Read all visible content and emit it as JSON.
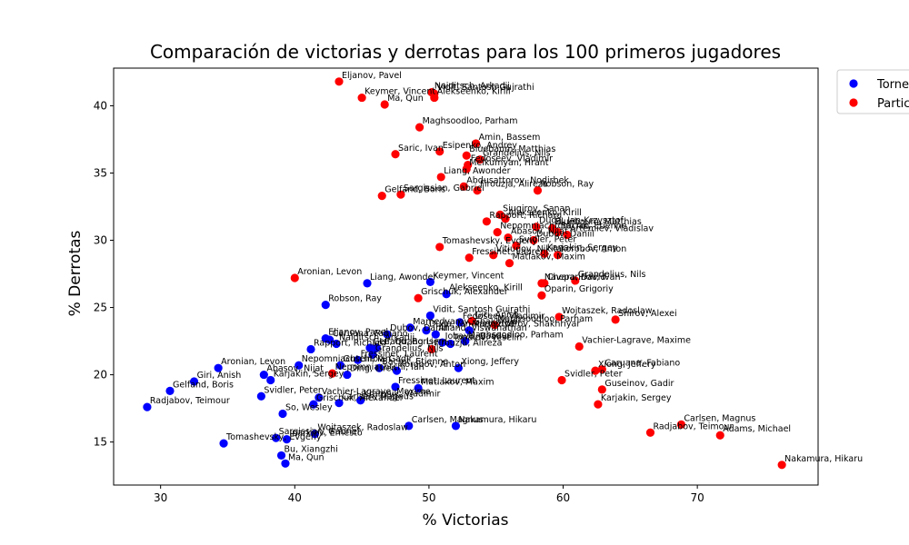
{
  "chart_data": {
    "type": "scatter",
    "title": "Comparación de victorias y derrotas para los 100 primeros jugadores",
    "xlabel": "% Victorias",
    "ylabel": "% Derrotas",
    "xlim": [
      26.5,
      79.0
    ],
    "ylim": [
      11.8,
      42.8
    ],
    "xticks": [
      30,
      40,
      50,
      60,
      70
    ],
    "yticks": [
      15,
      20,
      25,
      30,
      35,
      40
    ],
    "grid": false,
    "legend_position": "top-right",
    "legend_entries_visible": [
      "Torne",
      "Partic"
    ],
    "series": [
      {
        "name": "Torneos",
        "color": "#0000ff",
        "points": [
          {
            "x": 29.0,
            "y": 17.6,
            "label": "Radjabov, Teimour"
          },
          {
            "x": 30.7,
            "y": 18.8,
            "label": "Gelfand, Boris"
          },
          {
            "x": 32.5,
            "y": 19.5,
            "label": "Giri, Anish"
          },
          {
            "x": 34.3,
            "y": 20.5,
            "label": "Aronian, Levon"
          },
          {
            "x": 34.7,
            "y": 14.9,
            "label": "Tomashevsky, Evgeny"
          },
          {
            "x": 37.5,
            "y": 18.4,
            "label": "Svidler, Peter"
          },
          {
            "x": 37.7,
            "y": 20.0,
            "label": "Abasov, Nijat"
          },
          {
            "x": 38.2,
            "y": 19.6,
            "label": "Karjakin, Sergey"
          },
          {
            "x": 38.6,
            "y": 15.3,
            "label": "Sargissian, Gabriel"
          },
          {
            "x": 39.0,
            "y": 14.0,
            "label": "Bu, Xiangzhi"
          },
          {
            "x": 39.1,
            "y": 17.1,
            "label": "So, Wesley"
          },
          {
            "x": 39.3,
            "y": 13.4,
            "label": "Ma, Qun"
          },
          {
            "x": 39.4,
            "y": 15.2,
            "label": "Inarkiev, Ernesto"
          },
          {
            "x": 40.3,
            "y": 20.7,
            "label": "Nepomniachtchi, Ian"
          },
          {
            "x": 41.2,
            "y": 21.9,
            "label": "Rapport, Richard"
          },
          {
            "x": 41.4,
            "y": 17.8,
            "label": "Grischuk, Alexander"
          },
          {
            "x": 41.5,
            "y": 15.6,
            "label": "Wojtaszek, Radoslaw"
          },
          {
            "x": 41.8,
            "y": 18.3,
            "label": "Vachier-Lagrave, Maxime"
          },
          {
            "x": 42.3,
            "y": 22.7,
            "label": "Eljanov, Pavel"
          },
          {
            "x": 42.6,
            "y": 22.6,
            "label": "Caruana, Fabiano"
          },
          {
            "x": 43.1,
            "y": 22.3,
            "label": "Naiditsch, Arkadij"
          },
          {
            "x": 43.3,
            "y": 17.9,
            "label": "Carlsen, Magnus"
          },
          {
            "x": 43.4,
            "y": 20.7,
            "label": "Guseinov, Gadir"
          },
          {
            "x": 43.9,
            "y": 20.0,
            "label": "Ding, Liren"
          },
          {
            "x": 44.7,
            "y": 21.1,
            "label": "Fressinet, Laurent"
          },
          {
            "x": 44.9,
            "y": 18.1,
            "label": "Kramnik, Vladimir"
          },
          {
            "x": 45.6,
            "y": 22.0,
            "label": "Gelfand, Boris"
          },
          {
            "x": 45.8,
            "y": 21.5,
            "label": "Grandelius, Nils"
          },
          {
            "x": 46.1,
            "y": 22.0,
            "label": "Le, Quang Liem"
          },
          {
            "x": 46.3,
            "y": 20.5,
            "label": "Bacrot, Etienne"
          },
          {
            "x": 46.9,
            "y": 23.0,
            "label": "Dubov, Daniil"
          },
          {
            "x": 47.5,
            "y": 19.1,
            "label": "Fressinet, Laurent"
          },
          {
            "x": 47.6,
            "y": 20.3,
            "label": "Korobov, Anton"
          },
          {
            "x": 48.5,
            "y": 16.2,
            "label": "Carlsen, Magnus"
          },
          {
            "x": 48.6,
            "y": 23.5,
            "label": "Mamedyarov, Shakhriyar"
          },
          {
            "x": 49.2,
            "y": 19.0,
            "label": "Matlakov, Maxim"
          },
          {
            "x": 49.8,
            "y": 23.3,
            "label": "Duda, Jan-Krzysztof"
          },
          {
            "x": 50.1,
            "y": 24.4,
            "label": "Vidit, Santosh Gujrathi"
          },
          {
            "x": 50.1,
            "y": 26.9,
            "label": "Keymer, Vincent"
          },
          {
            "x": 50.5,
            "y": 23.0,
            "label": "Anand, Viswanathan"
          },
          {
            "x": 51.0,
            "y": 22.4,
            "label": "Jobava, Baadur"
          },
          {
            "x": 51.3,
            "y": 26.0,
            "label": "Alekseenko, Kirill"
          },
          {
            "x": 51.6,
            "y": 22.3,
            "label": "Topalov, Veselin"
          },
          {
            "x": 52.0,
            "y": 16.2,
            "label": "Nakamura, Hikaru"
          },
          {
            "x": 52.2,
            "y": 20.5,
            "label": "Xiong, Jeffery"
          },
          {
            "x": 52.3,
            "y": 23.9,
            "label": "Fedoseev, Vladimir"
          },
          {
            "x": 52.7,
            "y": 22.5,
            "label": "Maghsoodloo, Parham"
          },
          {
            "x": 53.0,
            "y": 23.3,
            "label": "Mamedyarov, Shakhriyar"
          },
          {
            "x": 45.4,
            "y": 26.8,
            "label": "Liang, Awonder"
          },
          {
            "x": 42.3,
            "y": 25.2,
            "label": "Robson, Ray"
          }
        ]
      },
      {
        "name": "Partidas",
        "color": "#ff0000",
        "points": [
          {
            "x": 43.3,
            "y": 41.8,
            "label": "Eljanov, Pavel"
          },
          {
            "x": 45.0,
            "y": 40.6,
            "label": "Keymer, Vincent"
          },
          {
            "x": 46.7,
            "y": 40.1,
            "label": "Ma, Qun"
          },
          {
            "x": 50.2,
            "y": 41.0,
            "label": "Naiditsch, Arkadij"
          },
          {
            "x": 50.4,
            "y": 40.6,
            "label": "Alekseenko, Kirill"
          },
          {
            "x": 50.4,
            "y": 40.9,
            "label": "Vidit, Santosh Gujrathi"
          },
          {
            "x": 49.3,
            "y": 38.4,
            "label": "Maghsoodloo, Parham"
          },
          {
            "x": 53.5,
            "y": 37.2,
            "label": "Amin, Bassem"
          },
          {
            "x": 47.5,
            "y": 36.4,
            "label": "Saric, Ivan"
          },
          {
            "x": 50.8,
            "y": 36.6,
            "label": "Esipenko, Andrey"
          },
          {
            "x": 52.8,
            "y": 36.3,
            "label": "Bluebaum, Matthias"
          },
          {
            "x": 53.8,
            "y": 36.0,
            "label": "Grandelius, Nils"
          },
          {
            "x": 52.9,
            "y": 35.6,
            "label": "Fedoseev, Vladimir"
          },
          {
            "x": 52.8,
            "y": 35.3,
            "label": "Melkumyan, Hrant"
          },
          {
            "x": 50.9,
            "y": 34.7,
            "label": "Liang, Awonder"
          },
          {
            "x": 52.6,
            "y": 34.0,
            "label": "Abdusattorov, Nodirbek"
          },
          {
            "x": 53.6,
            "y": 33.7,
            "label": "Firouzja, Alireza"
          },
          {
            "x": 58.1,
            "y": 33.7,
            "label": "Robson, Ray"
          },
          {
            "x": 46.5,
            "y": 33.3,
            "label": "Gelfand, Boris"
          },
          {
            "x": 47.9,
            "y": 33.4,
            "label": "Sargissian, Gabriel"
          },
          {
            "x": 55.3,
            "y": 31.9,
            "label": "Siugirov, Sanan"
          },
          {
            "x": 55.7,
            "y": 31.6,
            "label": "Alekseenko, Kirill"
          },
          {
            "x": 54.3,
            "y": 31.4,
            "label": "Rapport, Richard"
          },
          {
            "x": 58.0,
            "y": 31.0,
            "label": "Duda, Jan-Krzysztof"
          },
          {
            "x": 59.2,
            "y": 30.9,
            "label": "Bluebaum, Matthias"
          },
          {
            "x": 59.6,
            "y": 30.6,
            "label": "Bacrot, Etienne"
          },
          {
            "x": 55.1,
            "y": 30.6,
            "label": "Nepomniachtchi, Ian"
          },
          {
            "x": 60.3,
            "y": 30.4,
            "label": "Artemiev, Vladislav"
          },
          {
            "x": 55.9,
            "y": 30.2,
            "label": "Abasov, Nijat"
          },
          {
            "x": 57.8,
            "y": 30.0,
            "label": "Dubov, Daniil"
          },
          {
            "x": 56.5,
            "y": 29.6,
            "label": "Svidler, Peter"
          },
          {
            "x": 50.8,
            "y": 29.5,
            "label": "Tomashevsky, Evgeny"
          },
          {
            "x": 58.6,
            "y": 29.0,
            "label": "Karjakin, Sergey"
          },
          {
            "x": 53.0,
            "y": 28.7,
            "label": "Fressinet, Laurent"
          },
          {
            "x": 54.8,
            "y": 28.9,
            "label": "Vitiugov, Nikita"
          },
          {
            "x": 59.6,
            "y": 28.9,
            "label": "Korobov, Anton"
          },
          {
            "x": 56.0,
            "y": 28.3,
            "label": "Matlakov, Maxim"
          },
          {
            "x": 40.0,
            "y": 27.2,
            "label": "Aronian, Levon"
          },
          {
            "x": 58.4,
            "y": 26.8,
            "label": "Navara, David"
          },
          {
            "x": 60.9,
            "y": 27.0,
            "label": "Grandelius, Nils"
          },
          {
            "x": 58.6,
            "y": 26.8,
            "label": "Cheparinov, Ivan"
          },
          {
            "x": 49.2,
            "y": 25.7,
            "label": "Grischuk, Alexander"
          },
          {
            "x": 58.4,
            "y": 25.9,
            "label": "Oparin, Grigoriy"
          },
          {
            "x": 59.7,
            "y": 24.3,
            "label": "Wojtaszek, Radoslaw"
          },
          {
            "x": 63.9,
            "y": 24.1,
            "label": "Shirov, Alexei"
          },
          {
            "x": 53.2,
            "y": 24.0,
            "label": "Giri, Anish"
          },
          {
            "x": 54.9,
            "y": 23.7,
            "label": "Maghsoodloo, Parham"
          },
          {
            "x": 61.2,
            "y": 22.1,
            "label": "Vachier-Lagrave, Maxime"
          },
          {
            "x": 50.2,
            "y": 21.9,
            "label": "Firouzja, Alireza"
          },
          {
            "x": 62.9,
            "y": 20.4,
            "label": "Caruana, Fabiano"
          },
          {
            "x": 62.4,
            "y": 20.3,
            "label": "Xiong, Jeffery"
          },
          {
            "x": 59.9,
            "y": 19.6,
            "label": "Svidler, Peter"
          },
          {
            "x": 42.8,
            "y": 20.1,
            "label": "Nepomniachtchi, Ian"
          },
          {
            "x": 62.9,
            "y": 18.9,
            "label": "Guseinov, Gadir"
          },
          {
            "x": 62.6,
            "y": 17.8,
            "label": "Karjakin, Sergey"
          },
          {
            "x": 68.8,
            "y": 16.3,
            "label": "Carlsen, Magnus"
          },
          {
            "x": 66.5,
            "y": 15.7,
            "label": "Radjabov, Teimour"
          },
          {
            "x": 71.7,
            "y": 15.5,
            "label": "Adams, Michael"
          },
          {
            "x": 76.3,
            "y": 13.3,
            "label": "Nakamura, Hikaru"
          }
        ]
      }
    ]
  }
}
